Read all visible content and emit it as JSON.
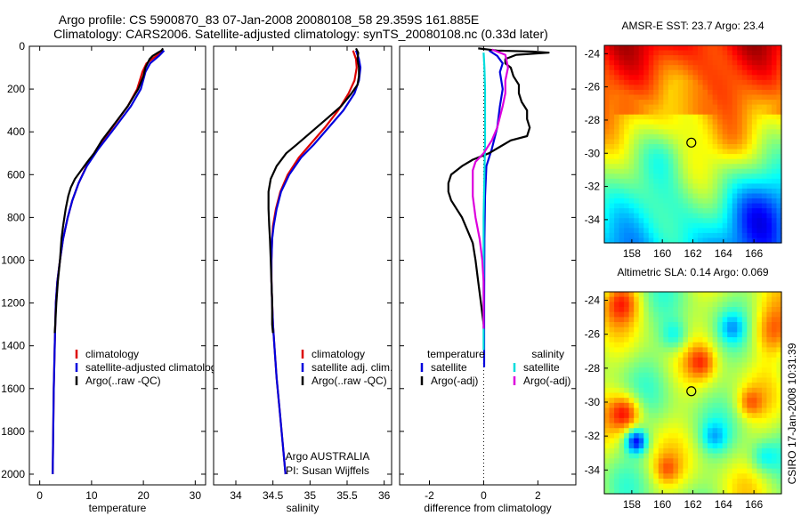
{
  "figure": {
    "title_line1": "Argo profile: CS 5900870_83 07-Jan-2008 20080108_58 29.359S 161.885E",
    "title_line2": "Climatology: CARS2006. Satellite-adjusted climatology: synTS_20080108.nc (0.33d later)",
    "side_label": "CSIRO 17-Jan-2008 10:31:39"
  },
  "chart_data": [
    {
      "id": "temperature",
      "type": "line",
      "xlabel": "temperature",
      "ylabel": "",
      "xlim": [
        -2,
        32
      ],
      "ylim": [
        2050,
        0
      ],
      "xticks": [
        0,
        10,
        20,
        30
      ],
      "yticks": [
        0,
        200,
        400,
        600,
        800,
        1000,
        1200,
        1400,
        1600,
        1800,
        2000
      ],
      "legend": [
        "climatology",
        "satellite-adjusted climatology",
        "Argo(..raw -QC)"
      ],
      "legend_position": "lower-right",
      "series": [
        {
          "name": "climatology",
          "color": "#dd0000",
          "width": 2.2,
          "points": [
            [
              23.8,
              20
            ],
            [
              22.5,
              45
            ],
            [
              20.6,
              80
            ],
            [
              19.8,
              120
            ],
            [
              18.8,
              200
            ],
            [
              17.0,
              280
            ],
            [
              14.0,
              380
            ],
            [
              11.0,
              480
            ],
            [
              9.0,
              560
            ],
            [
              7.5,
              640
            ],
            [
              6.3,
              720
            ],
            [
              5.4,
              800
            ],
            [
              4.5,
              900
            ],
            [
              3.9,
              1000
            ],
            [
              3.4,
              1100
            ],
            [
              3.1,
              1200
            ],
            [
              2.9,
              1400
            ],
            [
              2.7,
              1600
            ],
            [
              2.6,
              1800
            ],
            [
              2.5,
              2000
            ]
          ]
        },
        {
          "name": "satellite-adjusted climatology",
          "color": "#0000dd",
          "width": 2.2,
          "points": [
            [
              24.0,
              20
            ],
            [
              23.0,
              45
            ],
            [
              21.3,
              80
            ],
            [
              20.4,
              120
            ],
            [
              19.5,
              200
            ],
            [
              17.6,
              280
            ],
            [
              14.5,
              380
            ],
            [
              11.3,
              480
            ],
            [
              9.1,
              560
            ],
            [
              7.5,
              640
            ],
            [
              6.3,
              720
            ],
            [
              5.4,
              800
            ],
            [
              4.5,
              900
            ],
            [
              3.9,
              1000
            ],
            [
              3.4,
              1100
            ],
            [
              3.1,
              1200
            ],
            [
              2.9,
              1400
            ],
            [
              2.7,
              1600
            ],
            [
              2.6,
              1800
            ],
            [
              2.5,
              2000
            ]
          ]
        },
        {
          "name": "Argo(..raw -QC)",
          "color": "#000000",
          "width": 2.2,
          "points": [
            [
              23.8,
              10
            ],
            [
              23.5,
              20
            ],
            [
              22.8,
              30
            ],
            [
              21.8,
              45
            ],
            [
              21.2,
              60
            ],
            [
              20.8,
              80
            ],
            [
              20.4,
              100
            ],
            [
              20.0,
              140
            ],
            [
              19.0,
              200
            ],
            [
              17.0,
              280
            ],
            [
              14.5,
              360
            ],
            [
              12.0,
              440
            ],
            [
              10.5,
              500
            ],
            [
              9.2,
              540
            ],
            [
              8.0,
              580
            ],
            [
              6.8,
              620
            ],
            [
              6.0,
              660
            ],
            [
              5.5,
              700
            ],
            [
              5.0,
              760
            ],
            [
              4.5,
              840
            ],
            [
              4.2,
              900
            ],
            [
              3.9,
              1000
            ],
            [
              3.5,
              1100
            ],
            [
              3.2,
              1200
            ],
            [
              3.0,
              1300
            ],
            [
              2.9,
              1340
            ]
          ]
        }
      ]
    },
    {
      "id": "salinity",
      "type": "line",
      "xlabel": "salinity",
      "ylabel": "",
      "xlim": [
        33.7,
        36.1
      ],
      "ylim": [
        2050,
        0
      ],
      "xticks": [
        34,
        34.5,
        35,
        35.5,
        36
      ],
      "yticks": [
        0,
        200,
        400,
        600,
        800,
        1000,
        1200,
        1400,
        1600,
        1800,
        2000
      ],
      "legend": [
        "climatology",
        "satellite adj. clim.",
        "Argo(..raw -QC)"
      ],
      "legend_position": "lower-right",
      "annotations": [
        "Argo AUSTRALIA",
        "PI: Susan Wijffels"
      ],
      "series": [
        {
          "name": "climatology",
          "color": "#dd0000",
          "width": 2.2,
          "points": [
            [
              35.58,
              20
            ],
            [
              35.62,
              60
            ],
            [
              35.63,
              100
            ],
            [
              35.6,
              160
            ],
            [
              35.52,
              220
            ],
            [
              35.38,
              300
            ],
            [
              35.2,
              380
            ],
            [
              35.0,
              460
            ],
            [
              34.85,
              520
            ],
            [
              34.7,
              600
            ],
            [
              34.6,
              680
            ],
            [
              34.54,
              760
            ],
            [
              34.5,
              840
            ],
            [
              34.49,
              900
            ],
            [
              34.48,
              1000
            ],
            [
              34.48,
              1100
            ],
            [
              34.49,
              1200
            ],
            [
              34.5,
              1300
            ],
            [
              34.52,
              1400
            ],
            [
              34.55,
              1550
            ],
            [
              34.59,
              1700
            ],
            [
              34.63,
              1850
            ],
            [
              34.67,
              2000
            ]
          ]
        },
        {
          "name": "satellite adj. clim.",
          "color": "#0000dd",
          "width": 2.2,
          "points": [
            [
              35.62,
              20
            ],
            [
              35.66,
              60
            ],
            [
              35.68,
              100
            ],
            [
              35.66,
              160
            ],
            [
              35.6,
              220
            ],
            [
              35.45,
              300
            ],
            [
              35.25,
              380
            ],
            [
              35.05,
              460
            ],
            [
              34.88,
              520
            ],
            [
              34.72,
              600
            ],
            [
              34.61,
              680
            ],
            [
              34.55,
              760
            ],
            [
              34.51,
              840
            ],
            [
              34.49,
              900
            ],
            [
              34.48,
              1000
            ],
            [
              34.48,
              1100
            ],
            [
              34.49,
              1200
            ],
            [
              34.5,
              1300
            ],
            [
              34.52,
              1400
            ],
            [
              34.55,
              1550
            ],
            [
              34.59,
              1700
            ],
            [
              34.63,
              1850
            ],
            [
              34.67,
              2000
            ]
          ]
        },
        {
          "name": "Argo(..raw -QC)",
          "color": "#000000",
          "width": 2.2,
          "points": [
            [
              35.62,
              10
            ],
            [
              35.65,
              30
            ],
            [
              35.64,
              60
            ],
            [
              35.66,
              100
            ],
            [
              35.66,
              140
            ],
            [
              35.64,
              180
            ],
            [
              35.56,
              220
            ],
            [
              35.42,
              280
            ],
            [
              35.22,
              340
            ],
            [
              35.02,
              400
            ],
            [
              34.82,
              460
            ],
            [
              34.68,
              500
            ],
            [
              34.55,
              560
            ],
            [
              34.47,
              620
            ],
            [
              34.44,
              680
            ],
            [
              34.44,
              760
            ],
            [
              34.45,
              840
            ],
            [
              34.46,
              900
            ],
            [
              34.47,
              1000
            ],
            [
              34.48,
              1100
            ],
            [
              34.49,
              1200
            ],
            [
              34.49,
              1300
            ],
            [
              34.5,
              1340
            ]
          ]
        }
      ]
    },
    {
      "id": "difference",
      "type": "line",
      "xlabel": "difference from climatology",
      "ylabel": "",
      "xlim": [
        -3.1,
        3.4
      ],
      "ylim": [
        2050,
        0
      ],
      "xticks": [
        -2,
        0,
        2
      ],
      "yticks": [
        0,
        200,
        400,
        600,
        800,
        1000,
        1200,
        1400,
        1600,
        1800,
        2000
      ],
      "legend_headers": [
        "temperature",
        "salinity"
      ],
      "legend": [
        "satellite",
        "Argo(-adj)",
        "satellite",
        "Argo(-adj)"
      ],
      "legend_position": "lower-right",
      "series": [
        {
          "name": "satellite",
          "group": "temperature",
          "color": "#0000dd",
          "width": 2.2,
          "points": [
            [
              0.2,
              20
            ],
            [
              0.5,
              45
            ],
            [
              0.7,
              80
            ],
            [
              0.6,
              120
            ],
            [
              0.7,
              200
            ],
            [
              0.6,
              280
            ],
            [
              0.5,
              380
            ],
            [
              0.3,
              480
            ],
            [
              0.1,
              560
            ],
            [
              0.05,
              700
            ],
            [
              0.03,
              900
            ],
            [
              0.02,
              1200
            ],
            [
              0.02,
              1500
            ]
          ]
        },
        {
          "name": "Argo(-adj)",
          "group": "temperature",
          "color": "#000000",
          "width": 2.2,
          "points": [
            [
              -0.2,
              10
            ],
            [
              0.5,
              20
            ],
            [
              1.8,
              25
            ],
            [
              2.4,
              30
            ],
            [
              1.2,
              40
            ],
            [
              0.8,
              60
            ],
            [
              0.8,
              80
            ],
            [
              1.0,
              100
            ],
            [
              1.1,
              140
            ],
            [
              1.3,
              180
            ],
            [
              1.3,
              220
            ],
            [
              1.4,
              260
            ],
            [
              1.6,
              300
            ],
            [
              1.6,
              340
            ],
            [
              1.7,
              380
            ],
            [
              1.6,
              420
            ],
            [
              1.0,
              440
            ],
            [
              0.6,
              470
            ],
            [
              0.2,
              500
            ],
            [
              -0.4,
              530
            ],
            [
              -0.8,
              560
            ],
            [
              -1.2,
              600
            ],
            [
              -1.3,
              640
            ],
            [
              -1.3,
              680
            ],
            [
              -1.2,
              720
            ],
            [
              -1.0,
              760
            ],
            [
              -0.8,
              800
            ],
            [
              -0.6,
              860
            ],
            [
              -0.4,
              920
            ],
            [
              -0.3,
              1000
            ],
            [
              -0.2,
              1100
            ],
            [
              -0.1,
              1200
            ],
            [
              0.0,
              1300
            ]
          ]
        },
        {
          "name": "satellite",
          "group": "salinity",
          "color": "#00dddd",
          "width": 2.2,
          "points": [
            [
              0.0,
              30
            ],
            [
              0.03,
              100
            ],
            [
              0.05,
              200
            ],
            [
              0.05,
              300
            ],
            [
              0.05,
              450
            ],
            [
              0.03,
              600
            ],
            [
              0.0,
              800
            ],
            [
              0.0,
              1000
            ],
            [
              0.0,
              1200
            ],
            [
              0.0,
              1420
            ]
          ]
        },
        {
          "name": "Argo(-adj)",
          "group": "salinity",
          "color": "#dd00dd",
          "width": 2.2,
          "points": [
            [
              0.3,
              15
            ],
            [
              0.8,
              40
            ],
            [
              0.9,
              100
            ],
            [
              0.8,
              160
            ],
            [
              0.8,
              220
            ],
            [
              0.7,
              280
            ],
            [
              0.6,
              330
            ],
            [
              0.5,
              380
            ],
            [
              0.3,
              440
            ],
            [
              0.0,
              500
            ],
            [
              -0.3,
              540
            ],
            [
              -0.4,
              580
            ],
            [
              -0.4,
              640
            ],
            [
              -0.4,
              700
            ],
            [
              -0.3,
              800
            ],
            [
              -0.15,
              900
            ],
            [
              -0.05,
              1000
            ],
            [
              0.0,
              1100
            ],
            [
              0.0,
              1200
            ],
            [
              0.0,
              1320
            ]
          ]
        }
      ]
    },
    {
      "id": "sst_map",
      "type": "heatmap",
      "title": "AMSR-E SST: 23.7 Argo: 23.4",
      "xlim": [
        156.2,
        167.8
      ],
      "ylim": [
        -35.4,
        -23.5
      ],
      "xticks": [
        158,
        160,
        162,
        164,
        166
      ],
      "yticks": [
        -24,
        -26,
        -28,
        -30,
        -32,
        -34
      ],
      "marker": {
        "lon": 161.9,
        "lat": -29.36
      },
      "palette": "jet"
    },
    {
      "id": "sla_map",
      "type": "heatmap",
      "title": "Altimetric SLA: 0.14 Argo: 0.069",
      "xlim": [
        156.2,
        167.8
      ],
      "ylim": [
        -35.4,
        -23.5
      ],
      "xticks": [
        158,
        160,
        162,
        164,
        166
      ],
      "yticks": [
        -24,
        -26,
        -28,
        -30,
        -32,
        -34
      ],
      "marker": {
        "lon": 161.9,
        "lat": -29.36
      },
      "palette": "jet"
    }
  ]
}
